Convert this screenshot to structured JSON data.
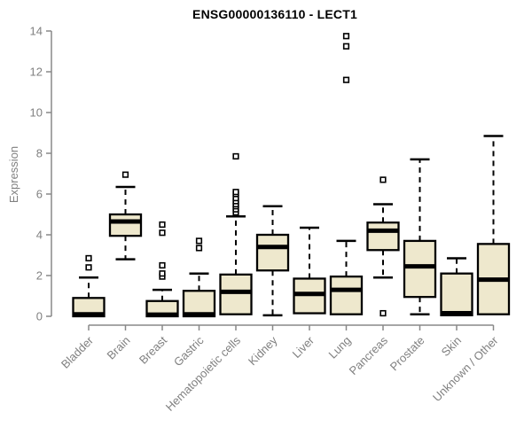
{
  "page": {
    "background": "#ffffff"
  },
  "chart_data": {
    "type": "boxplot",
    "title": "ENSG00000136110 - LECT1",
    "ylabel": "Expression",
    "xlabel": "",
    "ylim": [
      0,
      14
    ],
    "yticks": [
      0,
      2,
      4,
      6,
      8,
      10,
      12,
      14
    ],
    "grid": false,
    "legend": "none",
    "x_label_rotation_deg": 45,
    "categories": [
      "Bladder",
      "Brain",
      "Breast",
      "Gastric",
      "Hematopoietic cells",
      "Kidney",
      "Liver",
      "Lung",
      "Pancreas",
      "Prostate",
      "Skin",
      "Unknown / Other"
    ],
    "series": [
      {
        "name": "Bladder",
        "whisker_low": 0.0,
        "q1": 0.0,
        "median": 0.1,
        "q3": 0.9,
        "whisker_high": 1.9,
        "outliers": [
          2.4,
          2.85
        ]
      },
      {
        "name": "Brain",
        "whisker_low": 2.8,
        "q1": 3.95,
        "median": 4.65,
        "q3": 5.0,
        "whisker_high": 6.35,
        "outliers": [
          6.95
        ]
      },
      {
        "name": "Breast",
        "whisker_low": 0.0,
        "q1": 0.0,
        "median": 0.08,
        "q3": 0.75,
        "whisker_high": 1.3,
        "outliers": [
          1.95,
          2.1,
          2.5,
          4.1,
          4.5
        ]
      },
      {
        "name": "Gastric",
        "whisker_low": 0.0,
        "q1": 0.0,
        "median": 0.1,
        "q3": 1.25,
        "whisker_high": 2.1,
        "outliers": [
          3.35,
          3.7
        ]
      },
      {
        "name": "Hematopoietic cells",
        "whisker_low": 0.1,
        "q1": 0.1,
        "median": 1.2,
        "q3": 2.05,
        "whisker_high": 4.9,
        "outliers": [
          5.1,
          5.25,
          5.4,
          5.5,
          5.65,
          5.8,
          6.0,
          6.1,
          7.85
        ]
      },
      {
        "name": "Kidney",
        "whisker_low": 0.05,
        "q1": 2.25,
        "median": 3.4,
        "q3": 4.0,
        "whisker_high": 5.4,
        "outliers": []
      },
      {
        "name": "Liver",
        "whisker_low": 0.15,
        "q1": 0.15,
        "median": 1.1,
        "q3": 1.85,
        "whisker_high": 4.35,
        "outliers": []
      },
      {
        "name": "Lung",
        "whisker_low": 0.1,
        "q1": 0.1,
        "median": 1.3,
        "q3": 1.95,
        "whisker_high": 3.7,
        "outliers": [
          11.6,
          13.25,
          13.75
        ]
      },
      {
        "name": "Pancreas",
        "whisker_low": 1.9,
        "q1": 3.25,
        "median": 4.2,
        "q3": 4.6,
        "whisker_high": 5.5,
        "outliers": [
          0.15,
          6.7
        ]
      },
      {
        "name": "Prostate",
        "whisker_low": 0.1,
        "q1": 0.95,
        "median": 2.45,
        "q3": 3.7,
        "whisker_high": 7.7,
        "outliers": []
      },
      {
        "name": "Skin",
        "whisker_low": 0.05,
        "q1": 0.05,
        "median": 0.15,
        "q3": 2.1,
        "whisker_high": 2.85,
        "outliers": []
      },
      {
        "name": "Unknown / Other",
        "whisker_low": 0.1,
        "q1": 0.1,
        "median": 1.8,
        "q3": 3.55,
        "whisker_high": 8.85,
        "outliers": []
      }
    ],
    "colors": {
      "box_fill": "#EEE8CD",
      "box_border": "#000000",
      "median": "#000000",
      "whisker": "#000000",
      "outlier": "#000000",
      "axis": "#888888",
      "tick_label": "#808080",
      "title": "#000000"
    }
  }
}
